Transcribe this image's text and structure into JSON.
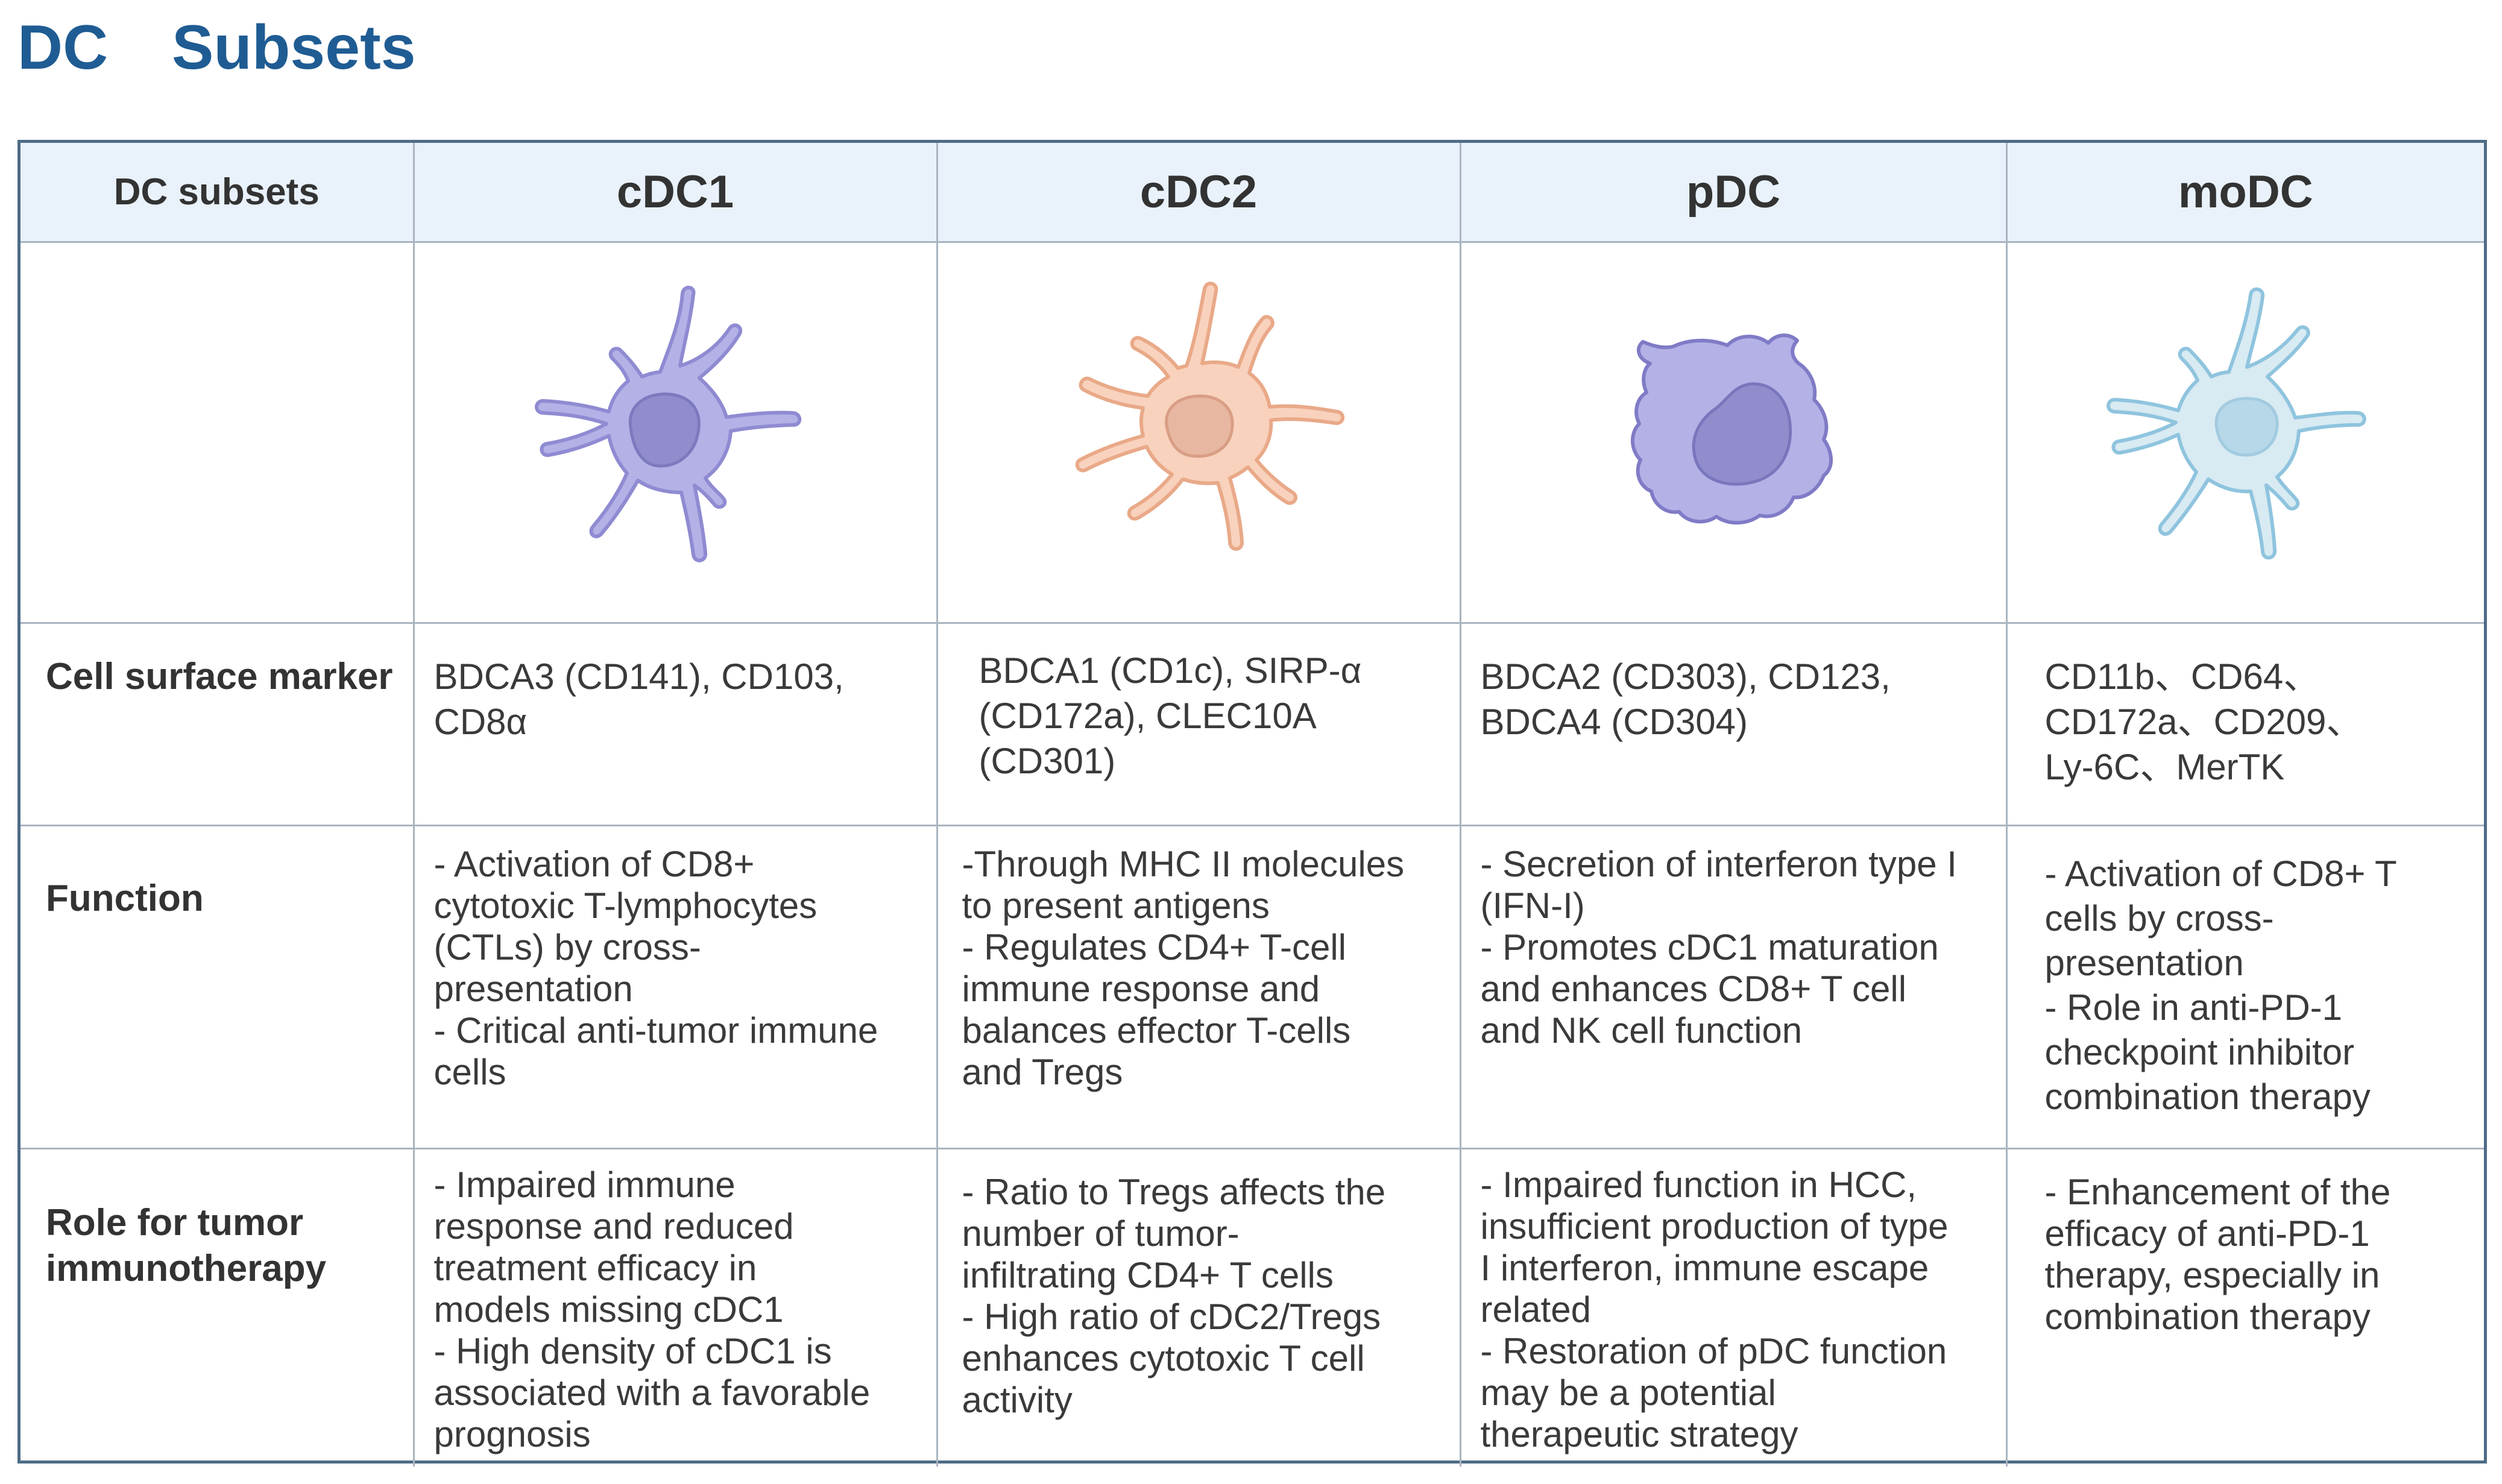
{
  "title": "DC  Subsets",
  "table": {
    "corner_label": "DC subsets",
    "columns": [
      "cDC1",
      "cDC2",
      "pDC",
      "moDC"
    ],
    "rows": [
      {
        "label": "Cell surface marker",
        "cells": [
          "BDCA3 (CD141), CD103,\nCD8α",
          "BDCA1 (CD1c), SIRP-α\n(CD172a), CLEC10A\n(CD301)",
          "BDCA2 (CD303), CD123,\nBDCA4 (CD304)",
          "CD11b、CD64、\nCD172a、CD209、\nLy-6C、MerTK"
        ]
      },
      {
        "label": "Function",
        "cells": [
          "- Activation of CD8+\ncytotoxic T-lymphocytes\n(CTLs) by cross-\npresentation\n- Critical anti-tumor immune\ncells",
          "-Through MHC II molecules\nto present antigens\n- Regulates CD4+ T-cell\nimmune response and\nbalances effector T-cells\nand Tregs",
          "- Secretion of interferon type I\n(IFN-I)\n- Promotes cDC1 maturation\nand enhances CD8+ T cell\nand NK cell function",
          "- Activation of CD8+ T\ncells by cross-\npresentation\n- Role in anti-PD-1\ncheckpoint inhibitor\ncombination therapy"
        ]
      },
      {
        "label": "Role for tumor immunotherapy",
        "cells": [
          "- Impaired immune\nresponse and  reduced\ntreatment efficacy in\nmodels missing cDC1\n- High density of cDC1 is\nassociated with a favorable\nprognosis",
          "- Ratio to Tregs affects the\nnumber of tumor-\ninfiltrating CD4+ T cells\n- High ratio of cDC2/Tregs\nenhances cytotoxic T cell\nactivity",
          "- Impaired function in HCC,\ninsufficient production of type\nI interferon, immune escape\nrelated\n- Restoration of pDC function\nmay be a potential\ntherapeutic strategy",
          "- Enhancement of the\nefficacy of anti-PD-1\ntherapy, especially in\ncombination therapy"
        ]
      }
    ]
  },
  "cell_images": [
    {
      "icon": "cdc1-cell-icon",
      "fill": "#b3b1e6",
      "stroke": "#8f8bd2",
      "nucleus": "#918dcc",
      "nucleus_stroke": "#7d79bf"
    },
    {
      "icon": "cdc2-cell-icon",
      "fill": "#f8d2bd",
      "stroke": "#e9a988",
      "nucleus": "#e8b7a1",
      "nucleus_stroke": "#d99e85"
    },
    {
      "icon": "pdc-cell-icon",
      "fill": "#b3b1e6",
      "stroke": "#7f7bc6",
      "nucleus": "#918dcc",
      "nucleus_stroke": "#7a76bd"
    },
    {
      "icon": "modc-cell-icon",
      "fill": "#d8eaf2",
      "stroke": "#8fc4de",
      "nucleus": "#b6d8e8",
      "nucleus_stroke": "#a2cbe0"
    }
  ],
  "colors": {
    "title": "#1f5c93",
    "header_background": "#e9f2fb",
    "outer_border": "#4f6c87",
    "grid_line": "#a9b5c1"
  }
}
